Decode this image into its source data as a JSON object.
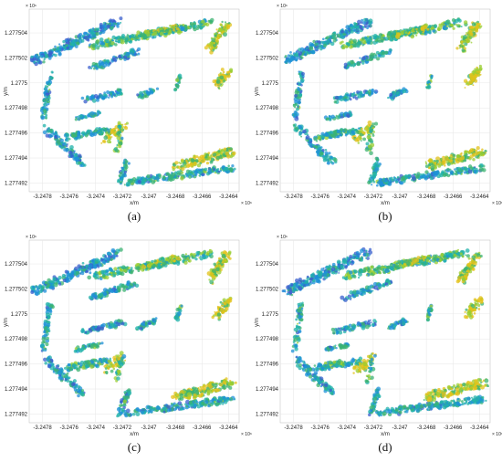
{
  "chart_data": {
    "type": "scatter",
    "layout": "2x2 grid of point-cloud plots",
    "x_axis": {
      "label": "x/m",
      "exponent": "× 10⁶",
      "ticks": [
        -3.2478,
        -3.2476,
        -3.2474,
        -3.2472,
        -3.247,
        -3.2468,
        -3.2466,
        -3.2464
      ],
      "tick_labels": [
        "-3.2478",
        "-3.2476",
        "-3.2474",
        "-3.2472",
        "-3.247",
        "-3.2468",
        "-3.2466",
        "-3.2464"
      ],
      "range": [
        -3.2479,
        -3.24632
      ]
    },
    "y_axis": {
      "label": "y/m",
      "exponent": "× 10⁶",
      "ticks": [
        1.277492,
        1.277494,
        1.277496,
        1.277498,
        1.2775,
        1.277502,
        1.277504
      ],
      "tick_labels": [
        "1.277492",
        "1.277494",
        "1.277496",
        "1.277498",
        "1.2775",
        "1.277502",
        "1.277504"
      ],
      "range": [
        1.2774913,
        1.2775059
      ]
    },
    "grid": true,
    "colormap": [
      "#3a5fcd",
      "#1e90d8",
      "#20b2aa",
      "#3cb371",
      "#9acd32",
      "#e3c21a"
    ],
    "panels": [
      {
        "caption": "(a)"
      },
      {
        "caption": "(b)"
      },
      {
        "caption": "(c)"
      },
      {
        "caption": "(d)"
      }
    ]
  }
}
